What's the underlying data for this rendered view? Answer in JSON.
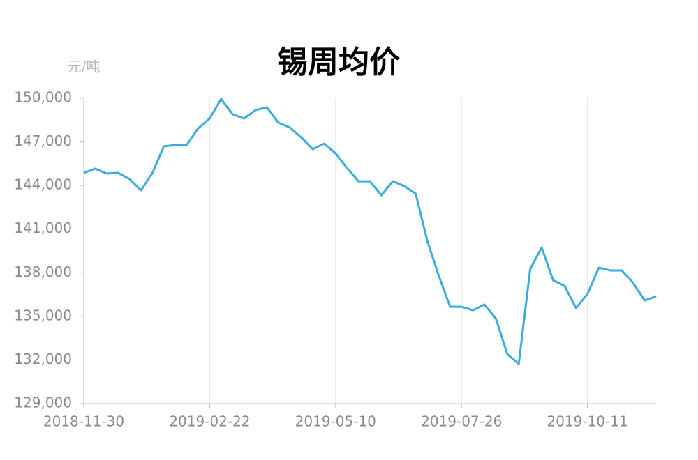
{
  "chart_data": {
    "type": "line",
    "title": "锡周均价",
    "y_unit": "元/吨",
    "categories": [
      "2018-11-30",
      null,
      null,
      null,
      null,
      null,
      null,
      null,
      null,
      null,
      null,
      "2019-02-22",
      null,
      null,
      null,
      null,
      null,
      null,
      null,
      null,
      null,
      null,
      "2019-05-10",
      null,
      null,
      null,
      null,
      null,
      null,
      null,
      null,
      null,
      null,
      "2019-07-26",
      null,
      null,
      null,
      null,
      null,
      null,
      null,
      null,
      null,
      null,
      "2019-10-11",
      null,
      null,
      null,
      null,
      null,
      null
    ],
    "series": [
      {
        "name": "锡周均价",
        "color": "#3aabdf",
        "values": [
          144870,
          145160,
          144820,
          144870,
          144440,
          143670,
          144870,
          146690,
          146790,
          146790,
          147940,
          148610,
          149950,
          148900,
          148610,
          149180,
          149380,
          148320,
          147990,
          147310,
          146500,
          146880,
          146210,
          145200,
          144290,
          144290,
          143330,
          144290,
          143960,
          143430,
          140220,
          137820,
          135660,
          135660,
          135420,
          135810,
          134850,
          132400,
          131730,
          138250,
          139740,
          137480,
          137100,
          135570,
          136530,
          138350,
          138160,
          138160,
          137290,
          136090,
          136380
        ]
      }
    ],
    "ylim": [
      129000,
      150000
    ],
    "yticks": [
      {
        "value": 129000,
        "label": "129,000"
      },
      {
        "value": 132000,
        "label": "132,000"
      },
      {
        "value": 135000,
        "label": "135,000"
      },
      {
        "value": 138000,
        "label": "138,000"
      },
      {
        "value": 141000,
        "label": "141,000"
      },
      {
        "value": 144000,
        "label": "144,000"
      },
      {
        "value": 147000,
        "label": "147,000"
      },
      {
        "value": 150000,
        "label": "150,000"
      }
    ],
    "xgrid": true
  }
}
